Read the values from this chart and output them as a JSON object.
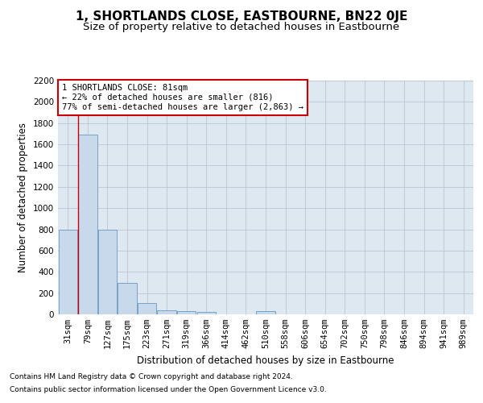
{
  "title": "1, SHORTLANDS CLOSE, EASTBOURNE, BN22 0JE",
  "subtitle": "Size of property relative to detached houses in Eastbourne",
  "xlabel": "Distribution of detached houses by size in Eastbourne",
  "ylabel": "Number of detached properties",
  "footnote1": "Contains HM Land Registry data © Crown copyright and database right 2024.",
  "footnote2": "Contains public sector information licensed under the Open Government Licence v3.0.",
  "categories": [
    "31sqm",
    "79sqm",
    "127sqm",
    "175sqm",
    "223sqm",
    "271sqm",
    "319sqm",
    "366sqm",
    "414sqm",
    "462sqm",
    "510sqm",
    "558sqm",
    "606sqm",
    "654sqm",
    "702sqm",
    "750sqm",
    "798sqm",
    "846sqm",
    "894sqm",
    "941sqm",
    "989sqm"
  ],
  "values": [
    800,
    1690,
    800,
    295,
    110,
    40,
    30,
    20,
    0,
    0,
    30,
    0,
    0,
    0,
    0,
    0,
    0,
    0,
    0,
    0,
    0
  ],
  "bar_color": "#c9d9ec",
  "bar_edge_color": "#6899c0",
  "annotation_box_text": "1 SHORTLANDS CLOSE: 81sqm\n← 22% of detached houses are smaller (816)\n77% of semi-detached houses are larger (2,863) →",
  "annotation_box_color": "#ffffff",
  "annotation_box_edge_color": "#cc0000",
  "vline_color": "#cc0000",
  "ylim": [
    0,
    2200
  ],
  "yticks": [
    0,
    200,
    400,
    600,
    800,
    1000,
    1200,
    1400,
    1600,
    1800,
    2000,
    2200
  ],
  "grid_color": "#bbbbcc",
  "bg_color": "#ffffff",
  "plot_bg_color": "#dde8f0",
  "title_fontsize": 11,
  "subtitle_fontsize": 9.5,
  "axis_label_fontsize": 8.5,
  "tick_fontsize": 7.5,
  "footnote_fontsize": 6.5,
  "annot_fontsize": 7.5
}
